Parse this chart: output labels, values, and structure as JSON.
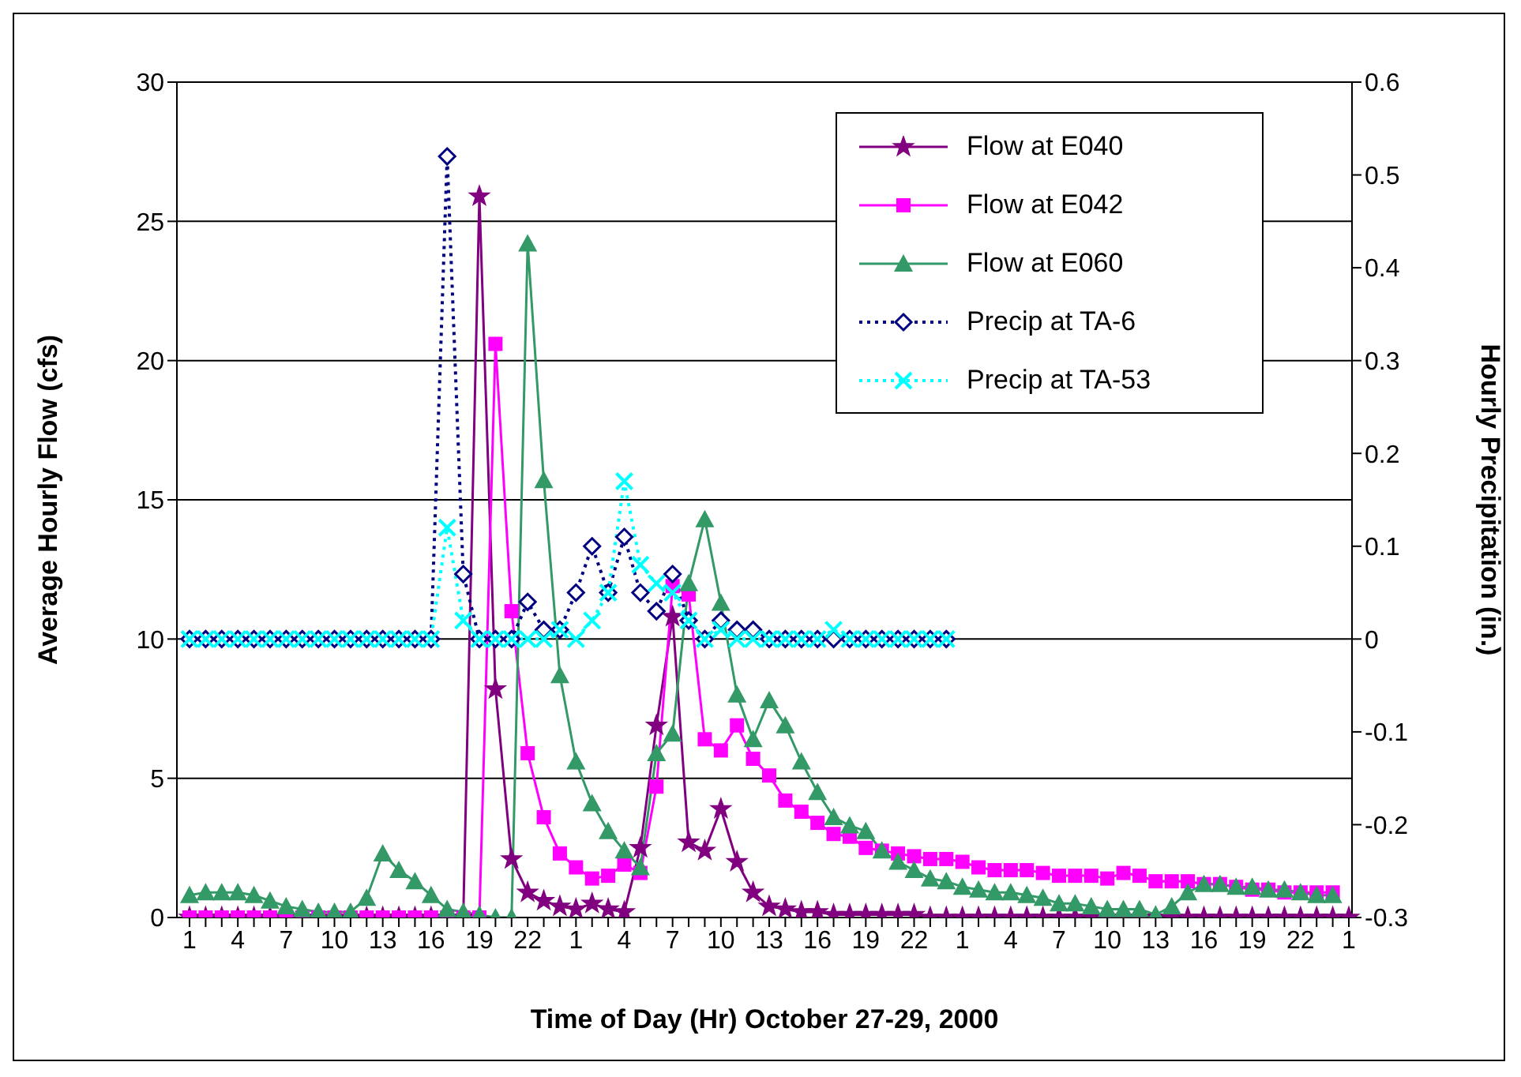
{
  "chart_data": {
    "type": "line",
    "xlabel": "Time of Day (Hr) October 27-29, 2000",
    "ylabel": "Average Hourly Flow (cfs)",
    "y2label": "Hourly Precipitation (in.)",
    "categories": [
      "1",
      null,
      null,
      "4",
      null,
      null,
      "7",
      null,
      null,
      "10",
      null,
      null,
      "13",
      null,
      null,
      "16",
      null,
      null,
      "19",
      null,
      null,
      "22",
      null,
      null,
      "1",
      null,
      null,
      "4",
      null,
      null,
      "7",
      null,
      null,
      "10",
      null,
      null,
      "13",
      null,
      null,
      "16",
      null,
      null,
      "19",
      null,
      null,
      "22",
      null,
      null,
      "1",
      null,
      null,
      "4",
      null,
      null,
      "7",
      null,
      null,
      "10",
      null,
      null,
      "13",
      null,
      null,
      "16",
      null,
      null,
      "19",
      null,
      null,
      "22",
      null,
      null,
      "1"
    ],
    "ylim": [
      0,
      30
    ],
    "yticks": [
      0,
      5,
      10,
      15,
      20,
      25,
      30
    ],
    "y2lim": [
      -0.3,
      0.6
    ],
    "y2ticks": [
      -0.3,
      -0.2,
      -0.1,
      0,
      0.1,
      0.2,
      0.3,
      0.4,
      0.5,
      0.6
    ],
    "grid": "y",
    "legend": "top right",
    "series": [
      {
        "name": "Flow at E040",
        "color": "#800080",
        "marker": "star",
        "line_style": "solid",
        "values": [
          0,
          0,
          0,
          0,
          0,
          0,
          0,
          0,
          0,
          0,
          0,
          0,
          0,
          0,
          0,
          0,
          0,
          0,
          25.9,
          8.2,
          2.1,
          0.9,
          0.6,
          0.4,
          0.3,
          0.5,
          0.3,
          0.2,
          2.5,
          6.9,
          10.8,
          2.7,
          2.4,
          3.9,
          2.0,
          0.9,
          0.4,
          0.3,
          0.2,
          0.2,
          0.1,
          0.1,
          0.1,
          0.1,
          0.1,
          0.1,
          0,
          0,
          0,
          0,
          0,
          0,
          0,
          0,
          0,
          0,
          0,
          0,
          0,
          0,
          0,
          0,
          0,
          0,
          0,
          0,
          0,
          0,
          0,
          0,
          0,
          0,
          0
        ]
      },
      {
        "name": "Flow at E042",
        "color": "#ff00ff",
        "marker": "square",
        "line_style": "solid",
        "values": [
          0,
          0,
          0,
          0,
          0,
          0,
          0,
          0,
          0,
          0,
          0,
          0,
          0,
          0,
          0,
          0,
          0,
          0,
          0,
          20.6,
          11.0,
          5.9,
          3.6,
          2.3,
          1.8,
          1.4,
          1.5,
          1.9,
          1.6,
          4.7,
          11.9,
          11.6,
          6.4,
          6.0,
          6.9,
          5.7,
          5.1,
          4.2,
          3.8,
          3.4,
          3.0,
          2.9,
          2.5,
          2.4,
          2.3,
          2.2,
          2.1,
          2.1,
          2.0,
          1.8,
          1.7,
          1.7,
          1.7,
          1.6,
          1.5,
          1.5,
          1.5,
          1.4,
          1.6,
          1.5,
          1.3,
          1.3,
          1.3,
          1.2,
          1.2,
          1.1,
          1.0,
          1.0,
          0.9,
          0.9,
          0.9,
          0.9,
          null
        ]
      },
      {
        "name": "Flow at E060",
        "color": "#339966",
        "marker": "triangle",
        "line_style": "solid",
        "values": [
          0.8,
          0.9,
          0.9,
          0.9,
          0.8,
          0.6,
          0.4,
          0.3,
          0.2,
          0.2,
          0.2,
          0.7,
          2.3,
          1.7,
          1.3,
          0.8,
          0.3,
          0.2,
          0.1,
          0,
          0,
          24.2,
          15.7,
          8.7,
          5.6,
          4.1,
          3.1,
          2.4,
          1.8,
          5.9,
          6.6,
          12.0,
          14.3,
          11.3,
          8.0,
          6.4,
          7.8,
          6.9,
          5.6,
          4.5,
          3.6,
          3.3,
          3.1,
          2.4,
          2.0,
          1.7,
          1.4,
          1.3,
          1.1,
          1.0,
          0.9,
          0.9,
          0.8,
          0.7,
          0.5,
          0.5,
          0.4,
          0.3,
          0.3,
          0.3,
          0.1,
          0.4,
          0.9,
          1.2,
          1.2,
          1.1,
          1.1,
          1.0,
          1.0,
          0.9,
          0.8,
          0.8,
          null
        ]
      },
      {
        "name": "Precip at TA-6",
        "color": "#000080",
        "marker": "diamond",
        "line_style": "dotted",
        "axis": "y2",
        "values": [
          0,
          0,
          0,
          0,
          0,
          0,
          0,
          0,
          0,
          0,
          0,
          0,
          0,
          0,
          0,
          0,
          0.52,
          0.07,
          0,
          0,
          0,
          0.04,
          0.01,
          0.01,
          0.05,
          0.1,
          0.05,
          0.11,
          0.05,
          0.03,
          0.07,
          0.02,
          0,
          0.02,
          0.01,
          0.01,
          0,
          0,
          0,
          0,
          0,
          0,
          0,
          0,
          0,
          0,
          0,
          0,
          null,
          null,
          null,
          null,
          null,
          null,
          null,
          null,
          null,
          null,
          null,
          null,
          null,
          null,
          null,
          null,
          null,
          null,
          null,
          null,
          null,
          null,
          null,
          null,
          null
        ]
      },
      {
        "name": "Precip at TA-53",
        "color": "#00ffff",
        "marker": "cross",
        "line_style": "dotted",
        "axis": "y2",
        "values": [
          0,
          0,
          0,
          0,
          0,
          0,
          0,
          0,
          0,
          0,
          0,
          0,
          0,
          0,
          0,
          0,
          0.12,
          0.02,
          0,
          0,
          0,
          0,
          0,
          0.01,
          0,
          0.02,
          0.05,
          0.17,
          0.08,
          0.06,
          0.05,
          0.02,
          0,
          0.01,
          0,
          0,
          0,
          0,
          0,
          0,
          0.01,
          0,
          0,
          0,
          0,
          0,
          0,
          0,
          null,
          null,
          null,
          null,
          null,
          null,
          null,
          null,
          null,
          null,
          null,
          null,
          null,
          null,
          null,
          null,
          null,
          null,
          null,
          null,
          null,
          null,
          null,
          null,
          null
        ]
      }
    ]
  }
}
